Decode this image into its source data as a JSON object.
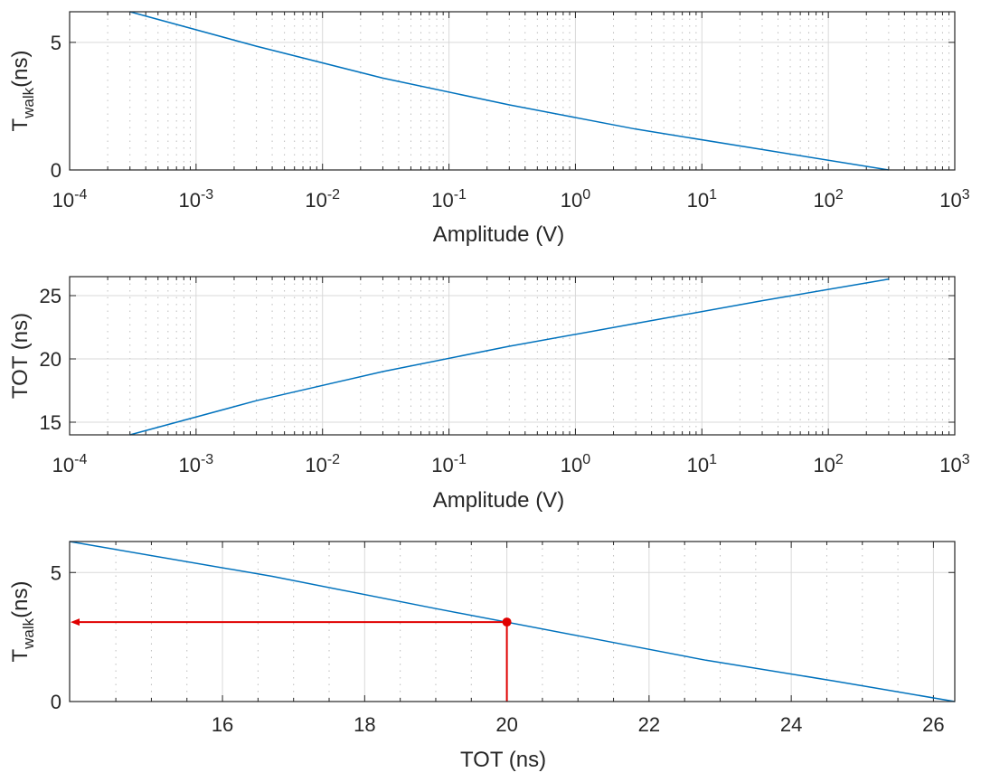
{
  "chart_data": [
    {
      "type": "line",
      "xscale": "log",
      "xlim": [
        0.0001,
        1000
      ],
      "ylim": [
        0,
        6.2
      ],
      "x_ticks": [
        {
          "base": "10",
          "exp": "-4"
        },
        {
          "base": "10",
          "exp": "-3"
        },
        {
          "base": "10",
          "exp": "-2"
        },
        {
          "base": "10",
          "exp": "-1"
        },
        {
          "base": "10",
          "exp": "0"
        },
        {
          "base": "10",
          "exp": "1"
        },
        {
          "base": "10",
          "exp": "2"
        },
        {
          "base": "10",
          "exp": "3"
        }
      ],
      "y_ticks": [
        "0",
        "5"
      ],
      "y_tick_values": [
        0,
        5
      ],
      "xlabel": "Amplitude (V)",
      "ylabel": {
        "main": "T",
        "sub": "walk",
        "unit": "(ns)"
      },
      "grid": true,
      "series": [
        {
          "color": "#0072bd",
          "x": [
            0.0003,
            0.003,
            0.03,
            0.3,
            3,
            30,
            300
          ],
          "y": [
            6.2,
            4.85,
            3.6,
            2.55,
            1.6,
            0.8,
            0.0
          ]
        }
      ]
    },
    {
      "type": "line",
      "xscale": "log",
      "xlim": [
        0.0001,
        1000
      ],
      "ylim": [
        14,
        26.5
      ],
      "x_ticks": [
        {
          "base": "10",
          "exp": "-4"
        },
        {
          "base": "10",
          "exp": "-3"
        },
        {
          "base": "10",
          "exp": "-2"
        },
        {
          "base": "10",
          "exp": "-1"
        },
        {
          "base": "10",
          "exp": "0"
        },
        {
          "base": "10",
          "exp": "1"
        },
        {
          "base": "10",
          "exp": "2"
        },
        {
          "base": "10",
          "exp": "3"
        }
      ],
      "y_ticks": [
        "15",
        "20",
        "25"
      ],
      "y_tick_values": [
        15,
        20,
        25
      ],
      "xlabel": "Amplitude (V)",
      "ylabel": {
        "main": "TOT (ns)",
        "sub": "",
        "unit": ""
      },
      "grid": true,
      "series": [
        {
          "color": "#0072bd",
          "x": [
            0.0003,
            0.003,
            0.03,
            0.3,
            3,
            30,
            300
          ],
          "y": [
            14.0,
            16.7,
            19.0,
            21.0,
            22.8,
            24.6,
            26.3
          ]
        }
      ]
    },
    {
      "type": "line",
      "xscale": "linear",
      "xlim": [
        13.85,
        26.3
      ],
      "ylim": [
        0,
        6.2
      ],
      "x_ticks": [
        "16",
        "18",
        "20",
        "22",
        "24",
        "26"
      ],
      "x_tick_values": [
        16,
        18,
        20,
        22,
        24,
        26
      ],
      "y_ticks": [
        "0",
        "5"
      ],
      "y_tick_values": [
        0,
        5
      ],
      "xlabel": "TOT (ns)",
      "ylabel": {
        "main": "T",
        "sub": "walk",
        "unit": "(ns)"
      },
      "grid": true,
      "series": [
        {
          "color": "#0072bd",
          "x": [
            13.85,
            16.7,
            19.0,
            21.0,
            22.8,
            24.6,
            26.3
          ],
          "y": [
            6.2,
            4.85,
            3.6,
            2.55,
            1.6,
            0.8,
            0.0
          ]
        }
      ],
      "annotation": {
        "color": "#e00000",
        "point": {
          "x": 20.0,
          "y": 3.08
        }
      }
    }
  ]
}
